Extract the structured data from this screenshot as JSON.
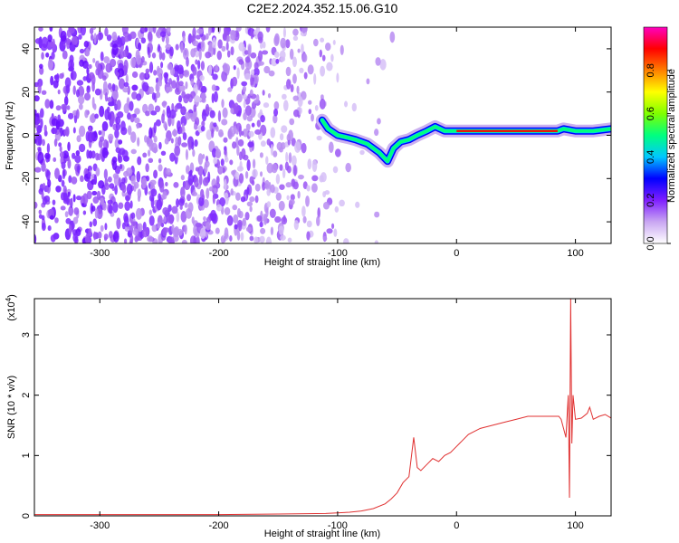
{
  "title": "C2E2.2024.352.15.06.G10",
  "chart_data": [
    {
      "type": "heatmap",
      "xlabel": "Height of straight line (km)",
      "ylabel": "Frequency (Hz)",
      "xlim": [
        -355,
        130
      ],
      "ylim": [
        -50,
        50
      ],
      "xticks": [
        -300,
        -200,
        -100,
        0,
        100
      ],
      "yticks": [
        -40,
        -20,
        0,
        20,
        40
      ],
      "colorbar": {
        "label": "Normalized spectral amplitude",
        "range": [
          0,
          1
        ],
        "ticks": [
          "0.0",
          "0.2",
          "0.4",
          "0.6",
          "0.8"
        ],
        "tick_values": [
          0,
          0.2,
          0.4,
          0.6,
          0.8
        ],
        "colors": [
          "#ffffff",
          "#c9a6f2",
          "#7f1fff",
          "#0000ff",
          "#00c8ff",
          "#00ff7f",
          "#7fff00",
          "#ffff00",
          "#ff8000",
          "#ff0000",
          "#ff00c0"
        ]
      },
      "noise_region_x": [
        -355,
        -88
      ],
      "track": [
        {
          "x": -113,
          "y": 7
        },
        {
          "x": -108,
          "y": 3
        },
        {
          "x": -100,
          "y": 0
        },
        {
          "x": -92,
          "y": -1
        },
        {
          "x": -85,
          "y": -2
        },
        {
          "x": -75,
          "y": -4
        },
        {
          "x": -65,
          "y": -8
        },
        {
          "x": -58,
          "y": -12
        },
        {
          "x": -53,
          "y": -6
        },
        {
          "x": -47,
          "y": -3
        },
        {
          "x": -40,
          "y": -2
        },
        {
          "x": -33,
          "y": 0
        },
        {
          "x": -25,
          "y": 2
        },
        {
          "x": -18,
          "y": 4
        },
        {
          "x": -10,
          "y": 2
        },
        {
          "x": 0,
          "y": 2
        },
        {
          "x": 30,
          "y": 2
        },
        {
          "x": 60,
          "y": 2
        },
        {
          "x": 85,
          "y": 2
        },
        {
          "x": 90,
          "y": 3
        },
        {
          "x": 100,
          "y": 2
        },
        {
          "x": 115,
          "y": 2
        },
        {
          "x": 130,
          "y": 3
        }
      ]
    },
    {
      "type": "line",
      "xlabel": "Height of straight line (km)",
      "ylabel": "SNR (10 * v/v)",
      "yscale_label": "(x10",
      "yscale_exp": "4",
      "yscale_close": ")",
      "xlim": [
        -355,
        130
      ],
      "ylim": [
        0,
        3.6
      ],
      "xticks": [
        -300,
        -200,
        -100,
        0,
        100
      ],
      "yticks": [
        0,
        1,
        2,
        3
      ],
      "series": [
        {
          "color": "#e03030",
          "x": [
            -355,
            -300,
            -250,
            -200,
            -150,
            -110,
            -90,
            -80,
            -70,
            -60,
            -55,
            -50,
            -45,
            -40,
            -36,
            -33,
            -30,
            -25,
            -20,
            -15,
            -10,
            -5,
            0,
            5,
            10,
            20,
            30,
            40,
            50,
            60,
            70,
            80,
            86,
            88,
            90,
            92,
            94,
            95,
            96,
            97,
            98,
            100,
            105,
            110,
            112,
            115,
            120,
            125,
            130
          ],
          "y": [
            0.02,
            0.02,
            0.02,
            0.02,
            0.03,
            0.04,
            0.06,
            0.08,
            0.12,
            0.2,
            0.28,
            0.38,
            0.55,
            0.65,
            1.3,
            0.8,
            0.75,
            0.85,
            0.95,
            0.9,
            1.0,
            1.05,
            1.15,
            1.25,
            1.35,
            1.45,
            1.5,
            1.55,
            1.6,
            1.65,
            1.65,
            1.65,
            1.65,
            1.6,
            1.45,
            1.3,
            2.0,
            0.3,
            3.6,
            1.2,
            2.0,
            1.6,
            1.62,
            1.7,
            1.8,
            1.6,
            1.65,
            1.68,
            1.62
          ]
        }
      ]
    }
  ]
}
